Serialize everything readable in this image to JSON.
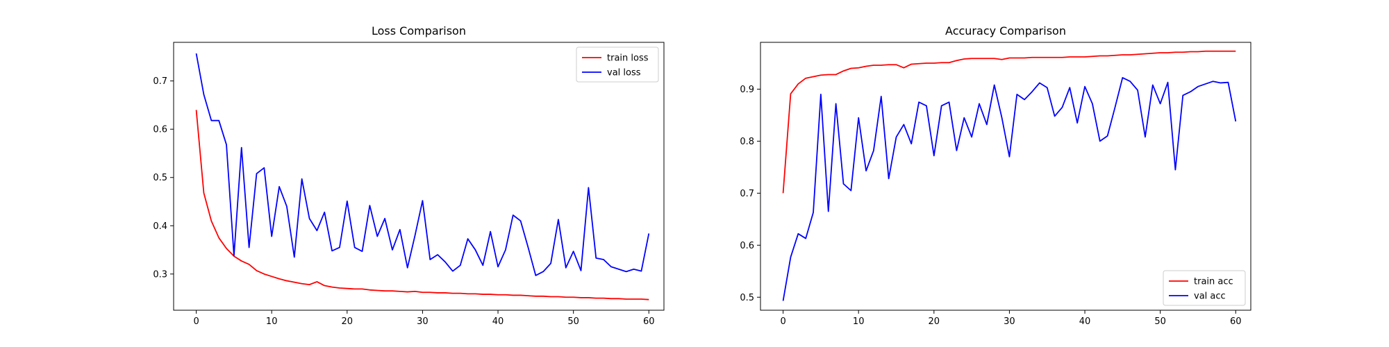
{
  "chart_data": [
    {
      "type": "line",
      "title": "Loss Comparison",
      "xlabel": "",
      "ylabel": "",
      "xlim": [
        -3,
        62
      ],
      "ylim": [
        0.225,
        0.78
      ],
      "xticks": [
        0,
        10,
        20,
        30,
        40,
        50,
        60
      ],
      "yticks": [
        0.3,
        0.4,
        0.5,
        0.6,
        0.7
      ],
      "grid": false,
      "legend": "top-right",
      "x": [
        0,
        1,
        2,
        3,
        4,
        5,
        6,
        7,
        8,
        9,
        10,
        11,
        12,
        13,
        14,
        15,
        16,
        17,
        18,
        19,
        20,
        21,
        22,
        23,
        24,
        25,
        26,
        27,
        28,
        29,
        30,
        31,
        32,
        33,
        34,
        35,
        36,
        37,
        38,
        39,
        40,
        41,
        42,
        43,
        44,
        45,
        46,
        47,
        48,
        49,
        50,
        51,
        52,
        53,
        54,
        55,
        56,
        57,
        58,
        59,
        60
      ],
      "series": [
        {
          "name": "train loss",
          "color": "#ff0000",
          "values": [
            0.64,
            0.468,
            0.41,
            0.375,
            0.353,
            0.337,
            0.327,
            0.32,
            0.307,
            0.3,
            0.295,
            0.29,
            0.286,
            0.283,
            0.28,
            0.278,
            0.284,
            0.276,
            0.273,
            0.271,
            0.27,
            0.269,
            0.269,
            0.267,
            0.266,
            0.265,
            0.265,
            0.264,
            0.263,
            0.264,
            0.262,
            0.262,
            0.261,
            0.261,
            0.26,
            0.26,
            0.259,
            0.259,
            0.258,
            0.258,
            0.257,
            0.257,
            0.256,
            0.256,
            0.255,
            0.254,
            0.254,
            0.253,
            0.253,
            0.252,
            0.252,
            0.251,
            0.251,
            0.25,
            0.25,
            0.249,
            0.249,
            0.248,
            0.248,
            0.248,
            0.247
          ]
        },
        {
          "name": "val loss",
          "color": "#0000ff",
          "values": [
            0.757,
            0.672,
            0.618,
            0.618,
            0.568,
            0.338,
            0.562,
            0.355,
            0.508,
            0.52,
            0.378,
            0.481,
            0.44,
            0.335,
            0.497,
            0.415,
            0.39,
            0.428,
            0.348,
            0.355,
            0.451,
            0.355,
            0.347,
            0.442,
            0.378,
            0.415,
            0.35,
            0.392,
            0.313,
            0.38,
            0.452,
            0.33,
            0.34,
            0.325,
            0.306,
            0.318,
            0.373,
            0.35,
            0.318,
            0.388,
            0.315,
            0.35,
            0.422,
            0.41,
            0.355,
            0.297,
            0.305,
            0.322,
            0.413,
            0.313,
            0.347,
            0.307,
            0.479,
            0.333,
            0.33,
            0.315,
            0.31,
            0.305,
            0.31,
            0.306,
            0.384
          ]
        }
      ]
    },
    {
      "type": "line",
      "title": "Accuracy Comparison",
      "xlabel": "",
      "ylabel": "",
      "xlim": [
        -3,
        62
      ],
      "ylim": [
        0.475,
        0.99
      ],
      "xticks": [
        0,
        10,
        20,
        30,
        40,
        50,
        60
      ],
      "yticks": [
        0.5,
        0.6,
        0.7,
        0.8,
        0.9
      ],
      "grid": false,
      "legend": "bottom-right",
      "x": [
        0,
        1,
        2,
        3,
        4,
        5,
        6,
        7,
        8,
        9,
        10,
        11,
        12,
        13,
        14,
        15,
        16,
        17,
        18,
        19,
        20,
        21,
        22,
        23,
        24,
        25,
        26,
        27,
        28,
        29,
        30,
        31,
        32,
        33,
        34,
        35,
        36,
        37,
        38,
        39,
        40,
        41,
        42,
        43,
        44,
        45,
        46,
        47,
        48,
        49,
        50,
        51,
        52,
        53,
        54,
        55,
        56,
        57,
        58,
        59,
        60
      ],
      "series": [
        {
          "name": "train acc",
          "color": "#ff0000",
          "values": [
            0.7,
            0.891,
            0.91,
            0.921,
            0.924,
            0.927,
            0.928,
            0.928,
            0.935,
            0.94,
            0.941,
            0.944,
            0.946,
            0.946,
            0.947,
            0.947,
            0.941,
            0.948,
            0.949,
            0.95,
            0.95,
            0.951,
            0.951,
            0.955,
            0.958,
            0.959,
            0.959,
            0.959,
            0.959,
            0.957,
            0.96,
            0.96,
            0.96,
            0.961,
            0.961,
            0.961,
            0.961,
            0.961,
            0.962,
            0.962,
            0.962,
            0.963,
            0.964,
            0.964,
            0.965,
            0.966,
            0.966,
            0.967,
            0.968,
            0.969,
            0.97,
            0.97,
            0.971,
            0.971,
            0.972,
            0.972,
            0.973,
            0.973,
            0.973,
            0.973,
            0.973
          ]
        },
        {
          "name": "val acc",
          "color": "#0000ff",
          "values": [
            0.493,
            0.577,
            0.622,
            0.613,
            0.663,
            0.89,
            0.665,
            0.872,
            0.718,
            0.705,
            0.845,
            0.743,
            0.782,
            0.886,
            0.728,
            0.808,
            0.832,
            0.795,
            0.875,
            0.868,
            0.772,
            0.868,
            0.875,
            0.782,
            0.845,
            0.808,
            0.872,
            0.832,
            0.908,
            0.845,
            0.77,
            0.89,
            0.88,
            0.895,
            0.912,
            0.903,
            0.848,
            0.865,
            0.903,
            0.835,
            0.905,
            0.872,
            0.8,
            0.81,
            0.865,
            0.922,
            0.915,
            0.898,
            0.808,
            0.908,
            0.872,
            0.913,
            0.745,
            0.888,
            0.895,
            0.905,
            0.91,
            0.915,
            0.912,
            0.913,
            0.838
          ]
        }
      ]
    }
  ]
}
